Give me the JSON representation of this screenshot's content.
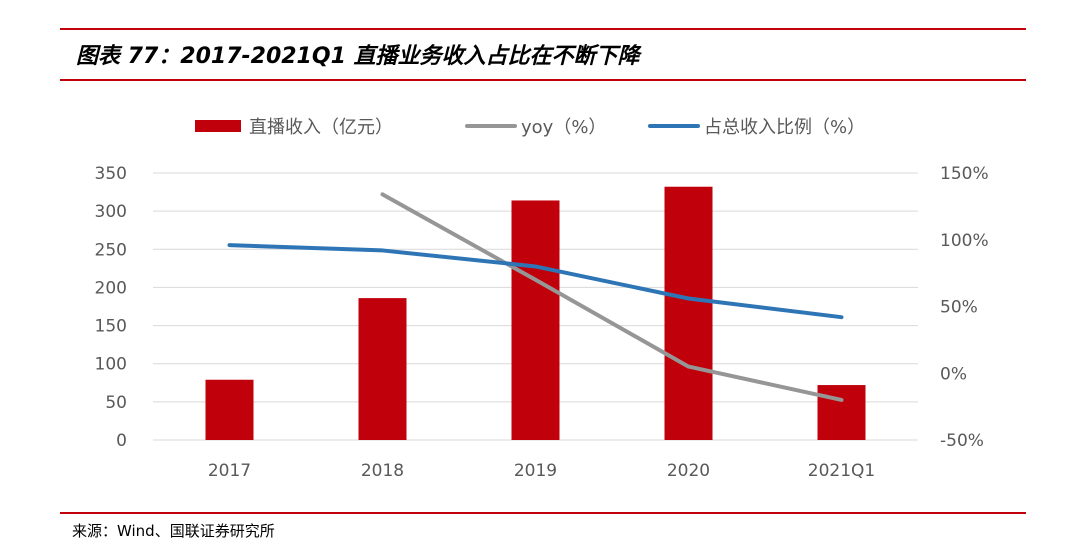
{
  "header": {
    "title": "图表 77：2017-2021Q1 直播业务收入占比在不断下降"
  },
  "footer": {
    "source": "来源：Wind、国联证券研究所"
  },
  "colors": {
    "accent": "#c0000a",
    "bar": "#c0000a",
    "yoy": "#969696",
    "share": "#2e75b6",
    "grid": "#d9d9d9",
    "axis_text": "#595959"
  },
  "chart_data": {
    "type": "bar",
    "categories": [
      "2017",
      "2018",
      "2019",
      "2020",
      "2021Q1"
    ],
    "series": [
      {
        "name": "直播收入（亿元）",
        "type": "bar",
        "axis": "left",
        "values": [
          79,
          186,
          314,
          332,
          72
        ]
      },
      {
        "name": "yoy（%）",
        "type": "line",
        "axis": "right",
        "values": [
          null,
          134,
          70,
          5,
          -20
        ]
      },
      {
        "name": "占总收入比例（%）",
        "type": "line",
        "axis": "right",
        "values": [
          96,
          92,
          80,
          56,
          42
        ]
      }
    ],
    "ylim": [
      0,
      350
    ],
    "yticks": [
      0,
      50,
      100,
      150,
      200,
      250,
      300,
      350
    ],
    "y2lim": [
      -50,
      150
    ],
    "y2ticks": [
      -50,
      0,
      50,
      100,
      150
    ],
    "y2tick_labels": [
      "-50%",
      "0%",
      "50%",
      "100%",
      "150%"
    ],
    "grid": true,
    "legend_position": "top"
  }
}
